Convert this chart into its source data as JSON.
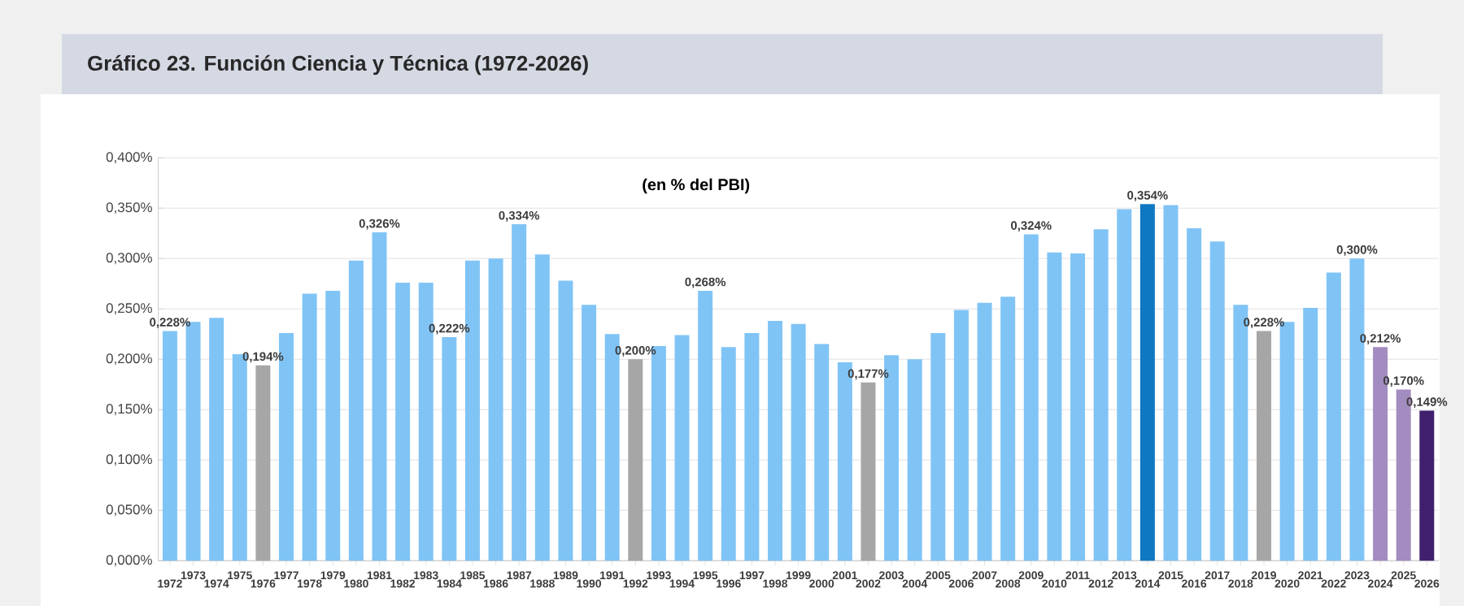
{
  "chart_data": {
    "type": "bar",
    "title": "Gráfico 23. Función Ciencia y Técnica (1972-2026)",
    "subtitle": "(en % del PBI)",
    "categories": [
      "1972",
      "1973",
      "1974",
      "1975",
      "1976",
      "1977",
      "1978",
      "1979",
      "1980",
      "1981",
      "1982",
      "1983",
      "1984",
      "1985",
      "1986",
      "1987",
      "1988",
      "1989",
      "1990",
      "1991",
      "1992",
      "1993",
      "1994",
      "1995",
      "1996",
      "1997",
      "1998",
      "1999",
      "2000",
      "2001",
      "2002",
      "2003",
      "2004",
      "2005",
      "2006",
      "2007",
      "2008",
      "2009",
      "2010",
      "2011",
      "2012",
      "2013",
      "2014",
      "2015",
      "2016",
      "2017",
      "2018",
      "2019",
      "2020",
      "2021",
      "2022",
      "2023",
      "2024",
      "2025",
      "2026"
    ],
    "values": [
      0.228,
      0.237,
      0.241,
      0.205,
      0.194,
      0.226,
      0.265,
      0.268,
      0.298,
      0.326,
      0.276,
      0.276,
      0.222,
      0.298,
      0.3,
      0.334,
      0.304,
      0.278,
      0.254,
      0.225,
      0.2,
      0.213,
      0.224,
      0.268,
      0.212,
      0.226,
      0.238,
      0.235,
      0.215,
      0.197,
      0.177,
      0.204,
      0.2,
      0.226,
      0.249,
      0.256,
      0.262,
      0.324,
      0.306,
      0.305,
      0.329,
      0.349,
      0.354,
      0.353,
      0.33,
      0.317,
      0.254,
      0.228,
      0.237,
      0.251,
      0.286,
      0.3,
      0.212,
      0.17,
      0.149
    ],
    "colors": [
      "#80c4f6",
      "#80c4f6",
      "#80c4f6",
      "#80c4f6",
      "#a6a6a6",
      "#80c4f6",
      "#80c4f6",
      "#80c4f6",
      "#80c4f6",
      "#80c4f6",
      "#80c4f6",
      "#80c4f6",
      "#80c4f6",
      "#80c4f6",
      "#80c4f6",
      "#80c4f6",
      "#80c4f6",
      "#80c4f6",
      "#80c4f6",
      "#80c4f6",
      "#a6a6a6",
      "#80c4f6",
      "#80c4f6",
      "#80c4f6",
      "#80c4f6",
      "#80c4f6",
      "#80c4f6",
      "#80c4f6",
      "#80c4f6",
      "#80c4f6",
      "#a6a6a6",
      "#80c4f6",
      "#80c4f6",
      "#80c4f6",
      "#80c4f6",
      "#80c4f6",
      "#80c4f6",
      "#80c4f6",
      "#80c4f6",
      "#80c4f6",
      "#80c4f6",
      "#80c4f6",
      "#0f78c2",
      "#80c4f6",
      "#80c4f6",
      "#80c4f6",
      "#80c4f6",
      "#a6a6a6",
      "#80c4f6",
      "#80c4f6",
      "#80c4f6",
      "#80c4f6",
      "#a38cc0",
      "#a38cc0",
      "#40206e"
    ],
    "value_labels": [
      "0,228%",
      null,
      null,
      null,
      "0,194%",
      null,
      null,
      null,
      null,
      "0,326%",
      null,
      null,
      "0,222%",
      null,
      null,
      "0,334%",
      null,
      null,
      null,
      null,
      "0,200%",
      null,
      null,
      "0,268%",
      null,
      null,
      null,
      null,
      null,
      null,
      "0,177%",
      null,
      null,
      null,
      null,
      null,
      null,
      "0,324%",
      null,
      null,
      null,
      null,
      "0,354%",
      null,
      null,
      null,
      null,
      "0,228%",
      null,
      null,
      null,
      "0,300%",
      "0,212%",
      "0,170%",
      "0,149%"
    ],
    "ylim": [
      0,
      0.4
    ],
    "yticks": [
      {
        "value": 0,
        "label": "0,000%"
      },
      {
        "value": 0.05,
        "label": "0,050%"
      },
      {
        "value": 0.1,
        "label": "0,100%"
      },
      {
        "value": 0.15,
        "label": "0,150%"
      },
      {
        "value": 0.2,
        "label": "0,200%"
      },
      {
        "value": 0.25,
        "label": "0,250%"
      },
      {
        "value": 0.3,
        "label": "0,300%"
      },
      {
        "value": 0.35,
        "label": "0,350%"
      },
      {
        "value": 0.4,
        "label": "0,400%"
      }
    ],
    "grid": "y"
  }
}
